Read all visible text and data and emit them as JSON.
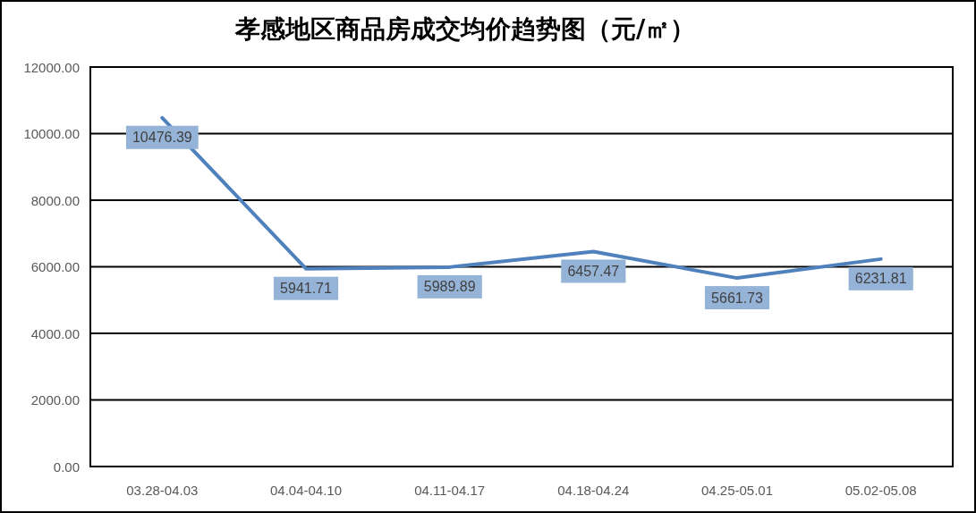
{
  "chart_data": {
    "type": "line",
    "title": "孝感地区商品房成交均价趋势图（元/㎡）",
    "categories": [
      "03.28-04.03",
      "04.04-04.10",
      "04.11-04.17",
      "04.18-04.24",
      "04.25-05.01",
      "05.02-05.08"
    ],
    "series": [
      {
        "color": "#4f81bd",
        "values": [
          10476.39,
          5941.71,
          5989.89,
          6457.47,
          5661.73,
          6231.81
        ]
      }
    ],
    "ylim": [
      0,
      12000
    ],
    "yticks": [
      {
        "value": 0,
        "label": "0.00"
      },
      {
        "value": 2000,
        "label": "2000.00"
      },
      {
        "value": 4000,
        "label": "4000.00"
      },
      {
        "value": 6000,
        "label": "6000.00"
      },
      {
        "value": 8000,
        "label": "8000.00"
      },
      {
        "value": 10000,
        "label": "10000.00"
      },
      {
        "value": 12000,
        "label": "12000.00"
      }
    ],
    "grid": "y",
    "data_labels": true,
    "marker": "none",
    "line_style": "solid"
  }
}
